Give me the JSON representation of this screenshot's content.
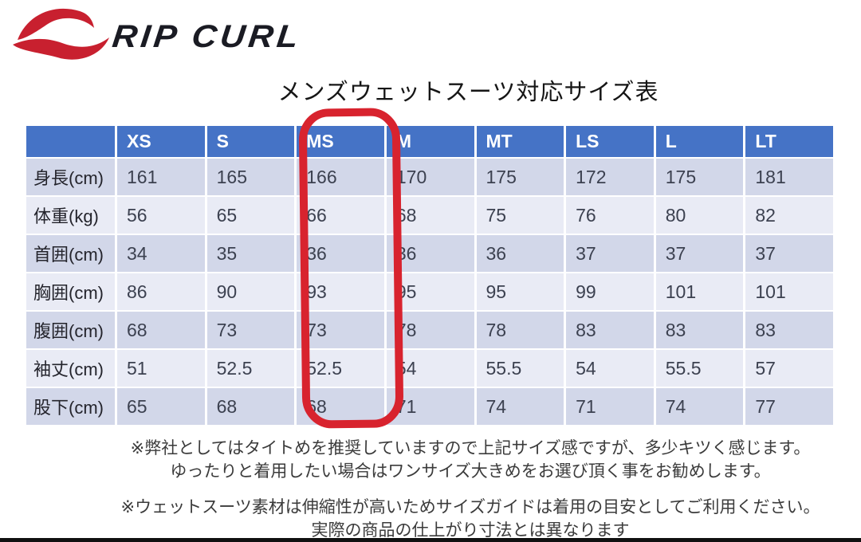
{
  "brand": {
    "wordmark": "RIP CURL",
    "wave_icon": "ripcurl-wave-icon"
  },
  "title": "メンズウェットスーツ対応サイズ表",
  "table": {
    "corner_label": "",
    "columns": [
      "XS",
      "S",
      "MS",
      "M",
      "MT",
      "LS",
      "L",
      "LT"
    ],
    "highlighted_column": "MS",
    "rows": [
      {
        "label": "身長(cm)",
        "values": [
          "161",
          "165",
          "166",
          "170",
          "175",
          "172",
          "175",
          "181"
        ]
      },
      {
        "label": "体重(kg)",
        "values": [
          "56",
          "65",
          "66",
          "68",
          "75",
          "76",
          "80",
          "82"
        ]
      },
      {
        "label": "首囲(cm)",
        "values": [
          "34",
          "35",
          "36",
          "36",
          "36",
          "37",
          "37",
          "37"
        ]
      },
      {
        "label": "胸囲(cm)",
        "values": [
          "86",
          "90",
          "93",
          "95",
          "95",
          "99",
          "101",
          "101"
        ]
      },
      {
        "label": "腹囲(cm)",
        "values": [
          "68",
          "73",
          "73",
          "78",
          "78",
          "83",
          "83",
          "83"
        ]
      },
      {
        "label": "袖丈(cm)",
        "values": [
          "51",
          "52.5",
          "52.5",
          "54",
          "55.5",
          "54",
          "55.5",
          "57"
        ]
      },
      {
        "label": "股下(cm)",
        "values": [
          "65",
          "68",
          "68",
          "71",
          "74",
          "71",
          "74",
          "77"
        ]
      }
    ]
  },
  "notes": [
    {
      "line1": "※弊社としてはタイトめを推奨していますので上記サイズ感ですが、多少キツく感じます。",
      "line2": "ゆったりと着用したい場合はワンサイズ大きめをお選び頂く事をお勧めします。"
    },
    {
      "line1": "※ウェットスーツ素材は伸縮性が高いためサイズガイドは着用の目安としてご利用ください。",
      "line2": "実際の商品の仕上がり寸法とは異なります"
    }
  ],
  "colors": {
    "header_bg": "#4573C6",
    "header_text": "#FFFFFF",
    "band_dark": "#D2D7E9",
    "band_light": "#E9EBF5",
    "cell_text": "#3C4150",
    "label_text": "#24242C",
    "circle_red": "#D8232E",
    "logo_red": "#C8202F",
    "wordmark_color": "#1A1B23",
    "note_text": "#3B3B3B",
    "bottom_bar": "#101010"
  }
}
